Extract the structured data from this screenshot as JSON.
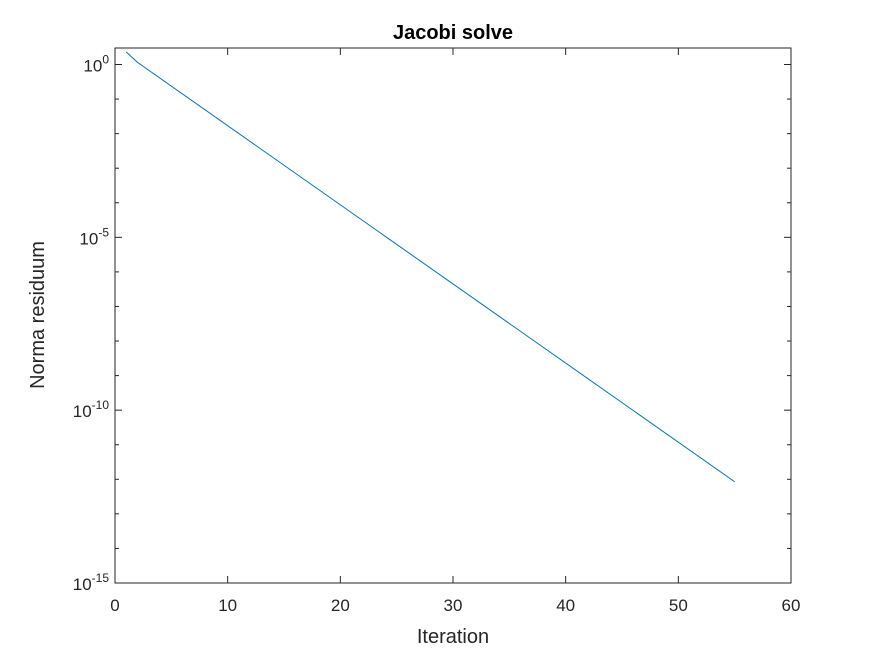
{
  "chart_data": {
    "type": "line",
    "title": "Jacobi solve",
    "xlabel": "Iteration",
    "ylabel": "Norma residuum",
    "xlim": [
      0,
      60
    ],
    "ylim": [
      1e-15,
      3
    ],
    "yscale": "log",
    "grid": false,
    "xticks": [
      0,
      10,
      20,
      30,
      40,
      50,
      60
    ],
    "xtick_labels": [
      "0",
      "10",
      "20",
      "30",
      "40",
      "50",
      "60"
    ],
    "yticks": [
      {
        "value": 1e-15,
        "base": "10",
        "exp": "-15"
      },
      {
        "value": 1e-10,
        "base": "10",
        "exp": "-10"
      },
      {
        "value": 1e-05,
        "base": "10",
        "exp": "-5"
      },
      {
        "value": 1,
        "base": "10",
        "exp": "0"
      }
    ],
    "series": [
      {
        "color": "#0072bd",
        "x": [
          1,
          2,
          55
        ],
        "y": [
          2.3,
          1.15,
          8.5e-13
        ]
      }
    ]
  }
}
